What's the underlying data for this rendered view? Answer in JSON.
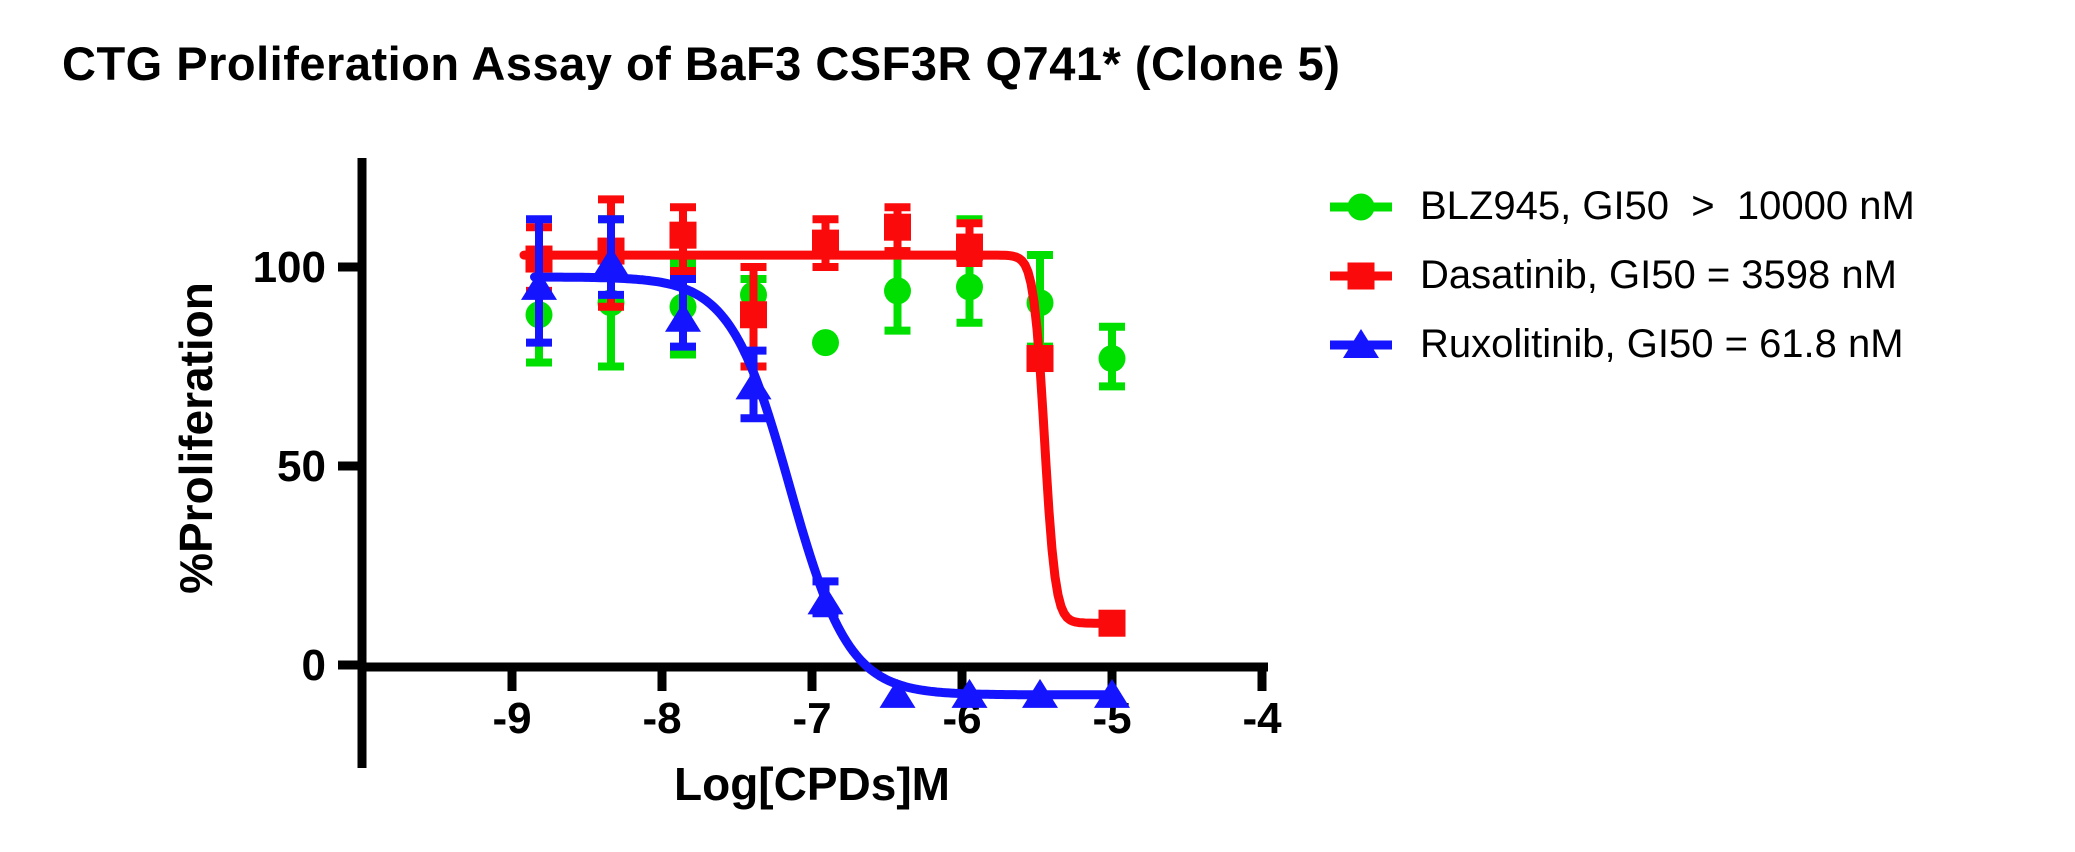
{
  "title": "CTG Proliferation Assay of BaF3 CSF3R Q741* (Clone 5)",
  "chart_data": {
    "type": "scatter",
    "title": "CTG Proliferation Assay of BaF3 CSF3R Q741* (Clone 5)",
    "xlabel": "Log[CPDs]M",
    "ylabel": "%Proliferation",
    "xlim": [
      -10.05,
      -3.95
    ],
    "ylim": [
      -26,
      127
    ],
    "x_ticks": [
      -9,
      -8,
      -7,
      -6,
      -5,
      -4
    ],
    "y_ticks": [
      0,
      50,
      100
    ],
    "grid": false,
    "legend_position": "right",
    "x": [
      -8.82,
      -8.34,
      -7.86,
      -7.39,
      -6.91,
      -6.43,
      -5.95,
      -5.48,
      -5.0
    ],
    "series": [
      {
        "name": "BLZ945",
        "legend_label": "BLZ945, GI50  >  10000 nM",
        "gi50": "> 10000 nM",
        "marker": "circle",
        "color": "#00E000",
        "y": [
          88,
          91,
          90,
          93,
          81,
          94,
          95,
          91,
          77
        ],
        "err": [
          [
            76,
            100
          ],
          [
            75,
            112
          ],
          [
            78,
            101
          ],
          [
            89,
            97
          ],
          null,
          [
            84,
            104
          ],
          [
            86,
            112
          ],
          [
            80,
            103
          ],
          [
            70,
            85
          ]
        ],
        "curve": null
      },
      {
        "name": "Dasatinib",
        "legend_label": "Dasatinib, GI50 = 3598 nM",
        "gi50": "3598 nM",
        "marker": "square",
        "color": "#FA0A0A",
        "y": [
          102,
          104,
          108,
          88,
          106,
          110,
          105,
          77,
          10.5
        ],
        "err": [
          [
            94,
            110
          ],
          [
            90,
            117
          ],
          [
            99,
            115
          ],
          [
            75,
            100
          ],
          [
            100,
            112
          ],
          [
            104,
            115
          ],
          [
            101,
            111
          ],
          null,
          null
        ],
        "curve": {
          "top": 103,
          "bottom": 10.5,
          "log_ec50": -5.45,
          "hill": 12,
          "range": [
            -8.92,
            -5.0
          ]
        }
      },
      {
        "name": "Ruxolitinib",
        "legend_label": "Ruxolitinib, GI50 = 61.8 nM",
        "gi50": "61.8 nM",
        "marker": "triangle",
        "color": "#1414FF",
        "y": [
          95,
          101,
          87,
          70,
          16,
          -7.5,
          -7.5,
          -7.5,
          -7.5
        ],
        "err": [
          [
            81,
            112
          ],
          [
            93,
            112
          ],
          [
            80,
            97
          ],
          [
            62,
            79
          ],
          [
            13,
            21
          ],
          null,
          null,
          null,
          null
        ],
        "curve": {
          "top": 97.5,
          "bottom": -7.5,
          "log_ec50": -7.15,
          "hill": 2.2,
          "range": [
            -8.85,
            -5.0
          ]
        }
      }
    ]
  }
}
